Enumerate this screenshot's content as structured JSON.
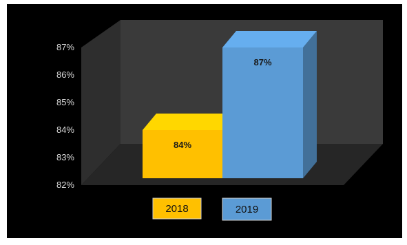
{
  "chart_data": {
    "type": "bar",
    "style": "3d-column",
    "categories": [
      "2018",
      "2019"
    ],
    "values": [
      84,
      87
    ],
    "data_labels": [
      "84%",
      "87%"
    ],
    "y_ticks": [
      "82%",
      "83%",
      "84%",
      "85%",
      "86%",
      "87%"
    ],
    "ylim": [
      82,
      87
    ],
    "grid": false,
    "legend_placement": "bottom",
    "legend": [
      "2018",
      "2019"
    ],
    "colors": {
      "2018": "#FFC000",
      "2019": "#5B9BD5",
      "background": "#000000",
      "walls": "#3a3a3a",
      "floor": "#2b2b2b"
    }
  }
}
